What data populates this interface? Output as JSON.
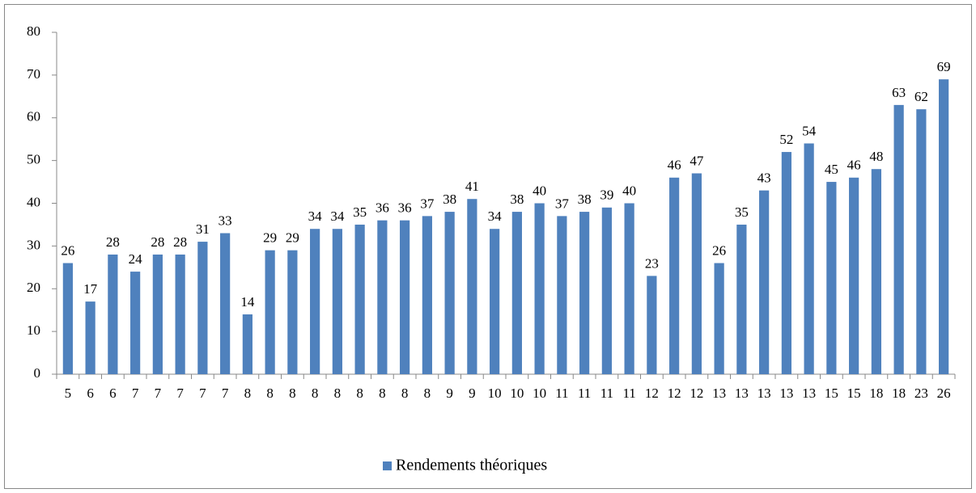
{
  "chart_data": {
    "type": "bar",
    "categories": [
      "5",
      "6",
      "6",
      "7",
      "7",
      "7",
      "7",
      "7",
      "8",
      "8",
      "8",
      "8",
      "8",
      "8",
      "8",
      "8",
      "8",
      "9",
      "9",
      "10",
      "10",
      "10",
      "11",
      "11",
      "11",
      "11",
      "12",
      "12",
      "12",
      "13",
      "13",
      "13",
      "13",
      "13",
      "15",
      "15",
      "18",
      "18",
      "23",
      "26"
    ],
    "series": [
      {
        "name": "Rendements théoriques",
        "color": "#4f81bd",
        "values": [
          26,
          17,
          28,
          24,
          28,
          28,
          31,
          33,
          14,
          29,
          29,
          34,
          34,
          35,
          36,
          36,
          37,
          38,
          41,
          34,
          38,
          40,
          37,
          38,
          39,
          40,
          23,
          46,
          47,
          26,
          35,
          43,
          52,
          54,
          45,
          46,
          48,
          63,
          62,
          69
        ]
      }
    ],
    "ylim": [
      0,
      80
    ],
    "yticks": [
      0,
      10,
      20,
      30,
      40,
      50,
      60,
      70,
      80
    ],
    "legend": "bottom"
  }
}
